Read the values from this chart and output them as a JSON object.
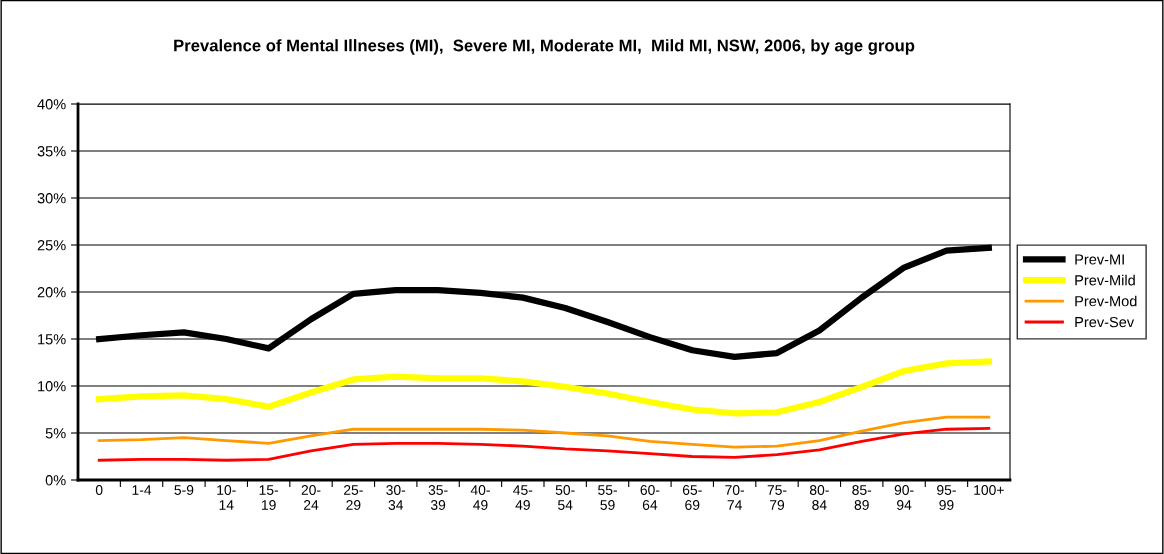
{
  "chart_data": {
    "type": "line",
    "title": "Prevalence of Mental Illneses (MI),  Severe MI, Moderate MI,  Mild MI, NSW, 2006, by age group",
    "categories": [
      "0",
      "1-4",
      "5-9",
      "10-\n14",
      "15-\n19",
      "20-\n24",
      "25-\n29",
      "30-\n34",
      "35-\n39",
      "40-\n49",
      "45-\n49",
      "50-\n54",
      "55-\n59",
      "60-\n64",
      "65-\n69",
      "70-\n74",
      "75-\n79",
      "80-\n84",
      "85-\n89",
      "90-\n94",
      "95-\n99",
      "100+"
    ],
    "series": [
      {
        "name": "Prev-MI",
        "color": "#000000",
        "values": [
          15.0,
          15.4,
          15.7,
          15.0,
          14.0,
          17.1,
          19.8,
          20.2,
          20.2,
          19.9,
          19.4,
          18.3,
          16.8,
          15.2,
          13.8,
          13.1,
          13.5,
          15.9,
          19.4,
          22.6,
          24.4,
          24.7
        ]
      },
      {
        "name": "Prev-Mild",
        "color": "#ffff00",
        "values": [
          8.6,
          8.9,
          9.0,
          8.6,
          7.8,
          9.3,
          10.7,
          11.0,
          10.8,
          10.8,
          10.5,
          9.9,
          9.2,
          8.3,
          7.5,
          7.1,
          7.2,
          8.3,
          9.9,
          11.6,
          12.4,
          12.6
        ]
      },
      {
        "name": "Prev-Mod",
        "color": "#ff9900",
        "values": [
          4.2,
          4.3,
          4.5,
          4.2,
          3.9,
          4.7,
          5.4,
          5.4,
          5.4,
          5.4,
          5.3,
          5.0,
          4.7,
          4.1,
          3.8,
          3.5,
          3.6,
          4.2,
          5.2,
          6.1,
          6.7,
          6.7
        ]
      },
      {
        "name": "Prev-Sev",
        "color": "#ff0000",
        "values": [
          2.1,
          2.2,
          2.2,
          2.1,
          2.2,
          3.1,
          3.8,
          3.9,
          3.9,
          3.8,
          3.6,
          3.3,
          3.1,
          2.8,
          2.5,
          2.4,
          2.7,
          3.2,
          4.1,
          4.9,
          5.4,
          5.5
        ]
      }
    ],
    "ylim": [
      0,
      40
    ],
    "yticks": [
      {
        "value": 0,
        "label": "0%"
      },
      {
        "value": 5,
        "label": "5%"
      },
      {
        "value": 10,
        "label": "10%"
      },
      {
        "value": 15,
        "label": "15%"
      },
      {
        "value": 20,
        "label": "20%"
      },
      {
        "value": 25,
        "label": "25%"
      },
      {
        "value": 30,
        "label": "30%"
      },
      {
        "value": 35,
        "label": "35%"
      },
      {
        "value": 40,
        "label": "40%"
      }
    ],
    "grid": "y",
    "legend": "right",
    "marker": "none",
    "line_style": "solid"
  }
}
